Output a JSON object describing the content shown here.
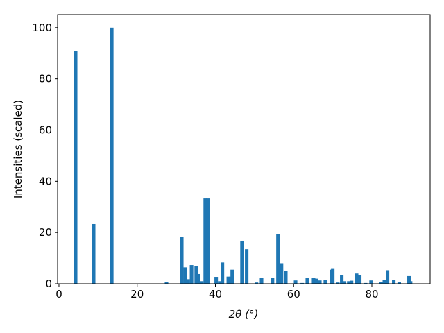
{
  "chart_data": {
    "type": "bar",
    "x_label": "2θ (°)",
    "y_label": "Intensities (scaled)",
    "color": "#1f77b4",
    "x": [
      4.26,
      8.87,
      13.5,
      27.5,
      31.4,
      32.3,
      33.0,
      33.9,
      35.1,
      35.6,
      36.5,
      37.4,
      38.1,
      40.2,
      41.1,
      41.8,
      43.3,
      44.0,
      44.3,
      46.8,
      48.0,
      50.5,
      51.8,
      54.6,
      56.0,
      56.9,
      58.0,
      60.5,
      62.2,
      63.5,
      65.1,
      65.8,
      66.7,
      68.1,
      69.7,
      70.0,
      71.3,
      72.3,
      73.0,
      74.1,
      74.8,
      76.1,
      76.9,
      78.4,
      79.8,
      82.3,
      83.2,
      84.0,
      85.6,
      87.0,
      89.5,
      89.9
    ],
    "values": [
      91,
      23.3,
      100,
      0.6,
      18.3,
      6.4,
      1.8,
      7.3,
      6.8,
      3.8,
      1,
      33.3,
      33.3,
      2.7,
      1,
      8.3,
      2.8,
      2.8,
      5.5,
      16.8,
      13.5,
      0.5,
      2.4,
      2.4,
      19.5,
      8,
      5,
      1.3,
      0.3,
      2.2,
      2.3,
      2,
      1.3,
      1.5,
      5.5,
      5.8,
      0.5,
      3.4,
      1,
      1,
      1.2,
      4,
      3.4,
      0.3,
      1.3,
      0.8,
      1.5,
      5.3,
      1.5,
      0.6,
      3,
      1
    ],
    "xlim": [
      -0.35,
      94.9
    ],
    "ylim": [
      0,
      105.1
    ],
    "xticks": [
      0,
      20,
      40,
      60,
      80
    ],
    "yticks": [
      0,
      20,
      40,
      60,
      80,
      100
    ]
  }
}
